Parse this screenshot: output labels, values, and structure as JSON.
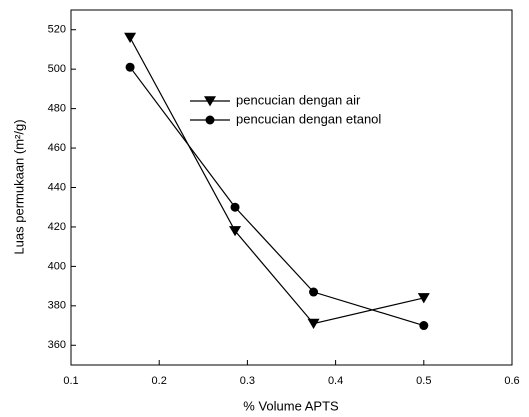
{
  "chart_data": {
    "type": "line",
    "xlabel": "% Volume APTS",
    "ylabel": "Luas permukaan (m²/g)",
    "x": [
      0.167,
      0.286,
      0.375,
      0.5
    ],
    "series": [
      {
        "name": "pencucian dengan air",
        "color": "#000000",
        "marker": "triangle-down",
        "values": [
          516,
          418,
          371,
          384
        ]
      },
      {
        "name": "pencucian dengan etanol",
        "color": "#000000",
        "marker": "circle",
        "values": [
          501,
          430,
          387,
          370
        ]
      }
    ],
    "xlim": [
      0.1,
      0.6
    ],
    "xticks": [
      0.1,
      0.2,
      0.3,
      0.4,
      0.5,
      0.6
    ],
    "ylim": [
      350,
      530
    ],
    "yticks": [
      360,
      380,
      400,
      420,
      440,
      460,
      480,
      500,
      520
    ],
    "grid": false
  }
}
